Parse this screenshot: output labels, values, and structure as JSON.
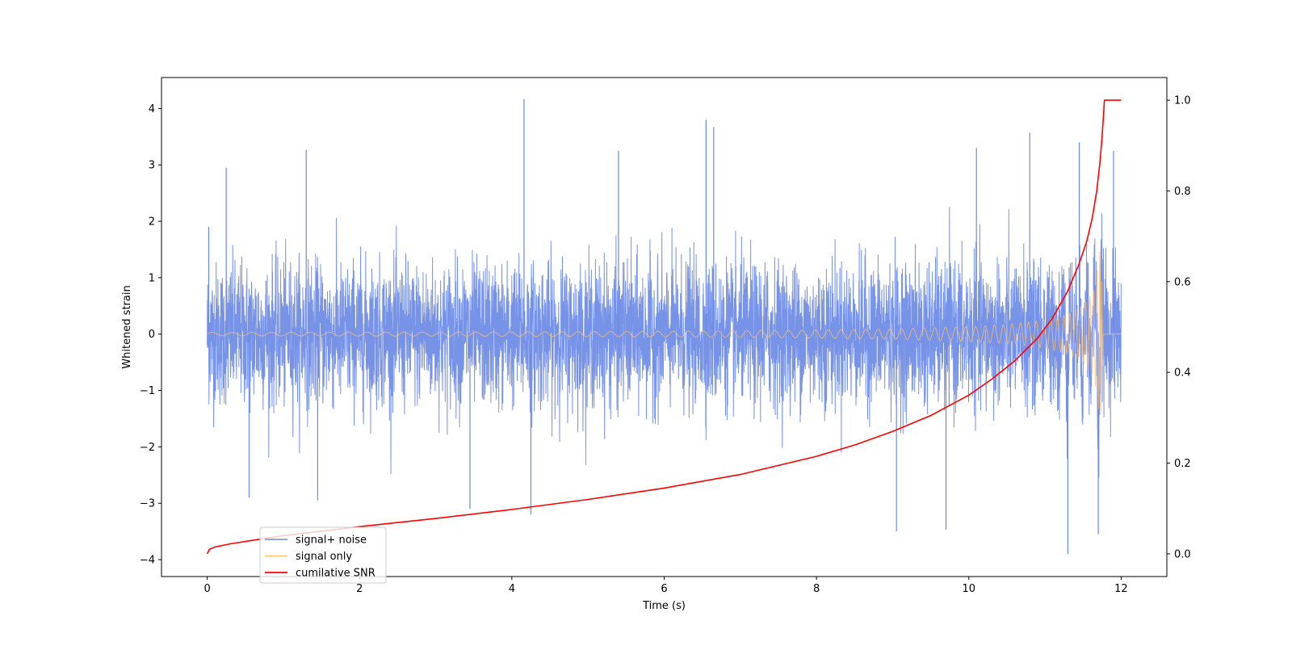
{
  "chart_data": {
    "type": "line",
    "title": "",
    "xlabel": "Time (s)",
    "ylabel": "Whitened strain",
    "y2label": "",
    "xlim": [
      -0.6,
      12.6
    ],
    "ylim": [
      -4.3,
      4.55
    ],
    "y2lim": [
      -0.05,
      1.05
    ],
    "xticks": [
      0,
      2,
      4,
      6,
      8,
      10,
      12
    ],
    "yticks": [
      -4,
      -3,
      -2,
      -1,
      0,
      1,
      2,
      3,
      4
    ],
    "y2ticks": [
      0.0,
      0.2,
      0.4,
      0.6,
      0.8,
      1.0
    ],
    "xtick_labels": [
      "0",
      "2",
      "4",
      "6",
      "8",
      "10",
      "12"
    ],
    "ytick_labels": [
      "−4",
      "−3",
      "−2",
      "−1",
      "0",
      "1",
      "2",
      "3",
      "4"
    ],
    "y2tick_labels": [
      "0.0",
      "0.2",
      "0.4",
      "0.6",
      "0.8",
      "1.0"
    ],
    "grid": false,
    "legend_position": "lower-left",
    "series": [
      {
        "name": "signal+ noise",
        "color": "#6b8ae6",
        "axis": "left",
        "description_values": {
          "x_range": [
            0,
            12
          ],
          "typical_range": [
            -1.9,
            1.9
          ],
          "peak_values": [
            {
              "x": 0.02,
              "y": 1.9
            },
            {
              "x": 0.25,
              "y": 2.95
            },
            {
              "x": 0.55,
              "y": -2.9
            },
            {
              "x": 1.3,
              "y": 3.27
            },
            {
              "x": 1.45,
              "y": -2.95
            },
            {
              "x": 3.45,
              "y": -3.1
            },
            {
              "x": 4.16,
              "y": 4.17
            },
            {
              "x": 4.25,
              "y": -3.2
            },
            {
              "x": 5.4,
              "y": 3.25
            },
            {
              "x": 6.55,
              "y": 3.8
            },
            {
              "x": 6.65,
              "y": 3.67
            },
            {
              "x": 9.05,
              "y": -3.5
            },
            {
              "x": 9.7,
              "y": -3.47
            },
            {
              "x": 10.1,
              "y": 3.3
            },
            {
              "x": 10.8,
              "y": 3.57
            },
            {
              "x": 11.3,
              "y": -3.9
            },
            {
              "x": 11.45,
              "y": 3.4
            },
            {
              "x": 11.7,
              "y": -3.55
            },
            {
              "x": 11.9,
              "y": 3.25
            }
          ]
        }
      },
      {
        "name": "signal only",
        "color": "#ffbf6b",
        "axis": "left",
        "description_values": {
          "x_range": [
            0,
            12
          ],
          "envelope": [
            {
              "x": 0,
              "amp": 0.03
            },
            {
              "x": 2,
              "amp": 0.035
            },
            {
              "x": 4,
              "amp": 0.04
            },
            {
              "x": 6,
              "amp": 0.05
            },
            {
              "x": 8,
              "amp": 0.07
            },
            {
              "x": 9,
              "amp": 0.09
            },
            {
              "x": 10,
              "amp": 0.13
            },
            {
              "x": 10.5,
              "amp": 0.17
            },
            {
              "x": 11,
              "amp": 0.25
            },
            {
              "x": 11.3,
              "amp": 0.35
            },
            {
              "x": 11.5,
              "amp": 0.5
            },
            {
              "x": 11.65,
              "amp": 0.8
            },
            {
              "x": 11.73,
              "amp": 1.6
            },
            {
              "x": 11.77,
              "amp": 0.0
            },
            {
              "x": 12,
              "amp": 0.0
            }
          ]
        }
      },
      {
        "name": "cumilative SNR",
        "color": "#ff0000",
        "axis": "right",
        "x": [
          0,
          0.03,
          0.1,
          0.3,
          0.6,
          1,
          2,
          3,
          4,
          5,
          6,
          7,
          8,
          8.5,
          9,
          9.5,
          10,
          10.3,
          10.6,
          10.9,
          11.1,
          11.3,
          11.45,
          11.55,
          11.62,
          11.68,
          11.72,
          11.75,
          11.77,
          11.78,
          12
        ],
        "values": [
          0.0,
          0.01,
          0.015,
          0.022,
          0.03,
          0.04,
          0.06,
          0.078,
          0.098,
          0.12,
          0.145,
          0.175,
          0.215,
          0.24,
          0.27,
          0.305,
          0.35,
          0.385,
          0.425,
          0.475,
          0.52,
          0.58,
          0.64,
          0.69,
          0.74,
          0.8,
          0.86,
          0.92,
          0.97,
          1.0,
          1.0
        ]
      }
    ]
  }
}
